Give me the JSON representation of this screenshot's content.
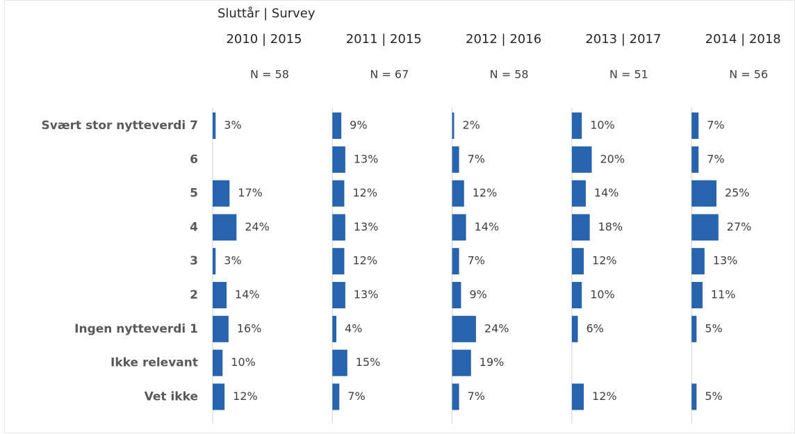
{
  "chart_data": {
    "type": "bar",
    "orientation": "horizontal",
    "title": "Sluttår | Survey",
    "categories": [
      "Svært stor nytteverdi 7",
      "6",
      "5",
      "4",
      "3",
      "2",
      "Ingen nytteverdi 1",
      "Ikke relevant",
      "Vet ikke"
    ],
    "color": "#2863ad",
    "series": [
      {
        "name": "2010 | 2015",
        "n_label": "N = 58",
        "values": [
          3,
          null,
          17,
          24,
          3,
          14,
          16,
          10,
          12
        ],
        "value_labels": [
          "3%",
          null,
          "17%",
          "24%",
          "3%",
          "14%",
          "16%",
          "10%",
          "12%"
        ]
      },
      {
        "name": "2011 | 2015",
        "n_label": "N = 67",
        "values": [
          9,
          13,
          12,
          13,
          12,
          13,
          4,
          15,
          7
        ],
        "value_labels": [
          "9%",
          "13%",
          "12%",
          "13%",
          "12%",
          "13%",
          "4%",
          "15%",
          "7%"
        ]
      },
      {
        "name": "2012 | 2016",
        "n_label": "N = 58",
        "values": [
          2,
          7,
          12,
          14,
          7,
          9,
          24,
          19,
          7
        ],
        "value_labels": [
          "2%",
          "7%",
          "12%",
          "14%",
          "7%",
          "9%",
          "24%",
          "19%",
          "7%"
        ]
      },
      {
        "name": "2013 | 2017",
        "n_label": "N = 51",
        "values": [
          10,
          20,
          14,
          18,
          12,
          10,
          6,
          null,
          12
        ],
        "value_labels": [
          "10%",
          "20%",
          "14%",
          "18%",
          "12%",
          "10%",
          "6%",
          null,
          "12%"
        ]
      },
      {
        "name": "2014 | 2018",
        "n_label": "N = 56",
        "values": [
          7,
          7,
          25,
          27,
          13,
          11,
          5,
          null,
          5
        ],
        "value_labels": [
          "7%",
          "7%",
          "25%",
          "27%",
          "13%",
          "11%",
          "5%",
          null,
          "5%"
        ]
      }
    ]
  }
}
